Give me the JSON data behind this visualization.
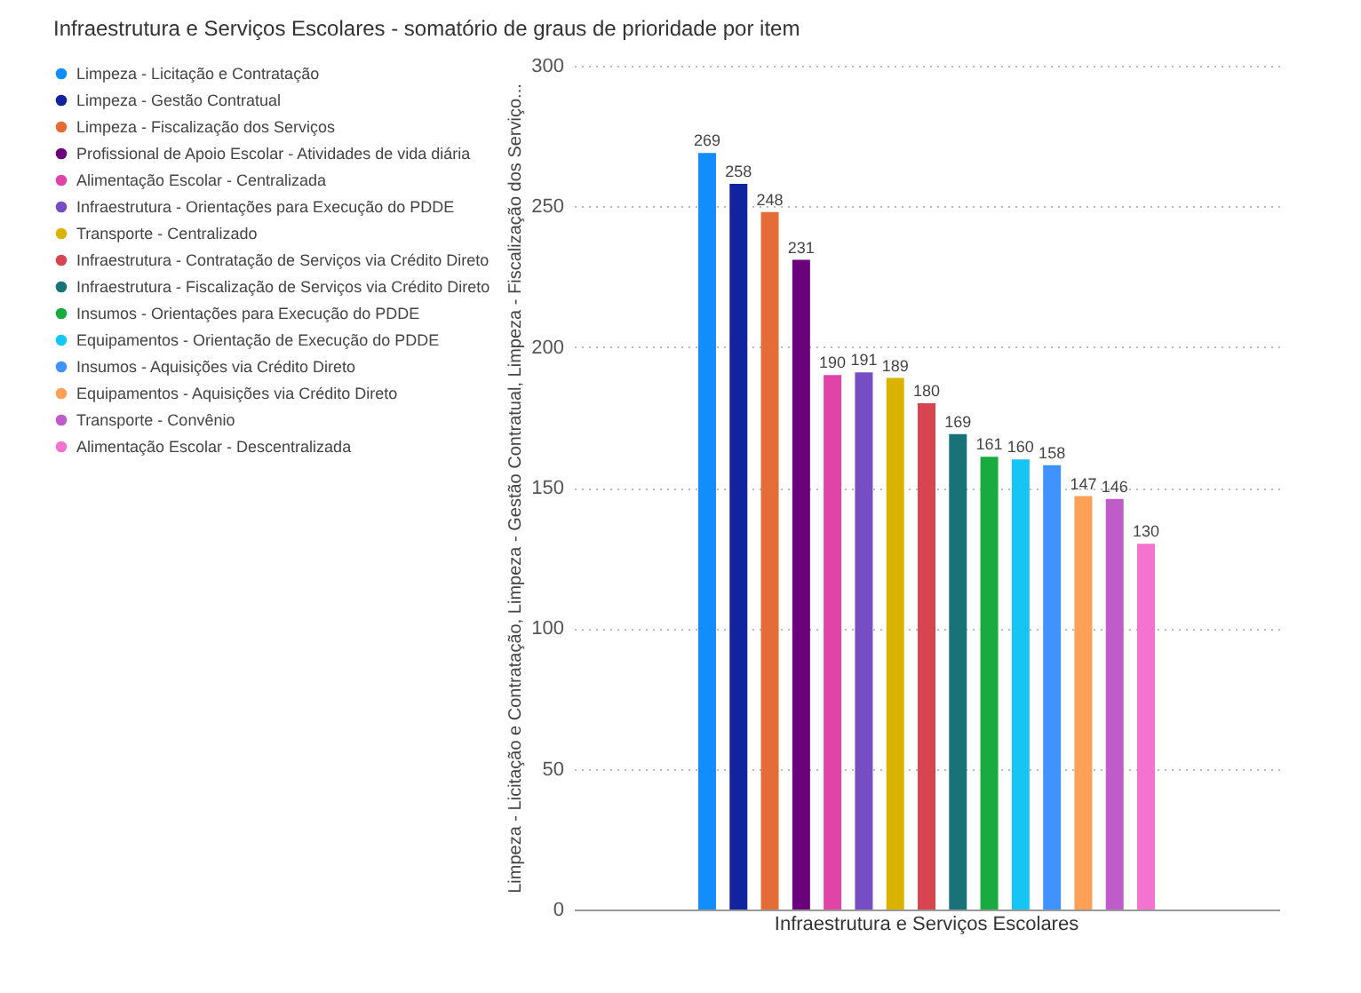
{
  "chart_data": {
    "type": "bar",
    "title": "Infraestrutura e Serviços Escolares - somatório de graus de prioridade por item",
    "ylabel": "Limpeza - Licitação e Contratação, Limpeza - Gestão Contratual, Limpeza - Fiscalização dos Serviço...",
    "categories": [
      "Infraestrutura e Serviços Escolares"
    ],
    "series": [
      {
        "name": "Limpeza - Licitação e Contratação",
        "color": "#118dff",
        "values": [
          269
        ]
      },
      {
        "name": "Limpeza - Gestão Contratual",
        "color": "#12239e",
        "values": [
          258
        ]
      },
      {
        "name": "Limpeza - Fiscalização dos Serviços",
        "color": "#e66c37",
        "values": [
          248
        ]
      },
      {
        "name": "Profissional de Apoio Escolar - Atividades de vida diária",
        "color": "#6b007b",
        "values": [
          231
        ]
      },
      {
        "name": "Alimentação Escolar - Centralizada",
        "color": "#e044a7",
        "values": [
          190
        ]
      },
      {
        "name": "Infraestrutura - Orientações para Execução do PDDE",
        "color": "#744ec2",
        "values": [
          191
        ]
      },
      {
        "name": "Transporte - Centralizado",
        "color": "#d9b300",
        "values": [
          189
        ]
      },
      {
        "name": "Infraestrutura - Contratação de Serviços via Crédito Direto",
        "color": "#d64550",
        "values": [
          180
        ]
      },
      {
        "name": "Infraestrutura - Fiscalização de Serviços via Crédito Direto",
        "color": "#197278",
        "values": [
          169
        ]
      },
      {
        "name": "Insumos  - Orientações para Execução do PDDE",
        "color": "#1aab40",
        "values": [
          161
        ]
      },
      {
        "name": "Equipamentos - Orientação de Execução do PDDE",
        "color": "#15c6f4",
        "values": [
          160
        ]
      },
      {
        "name": "Insumos - Aquisições via Crédito Direto",
        "color": "#4092ff",
        "values": [
          158
        ]
      },
      {
        "name": "Equipamentos - Aquisições via Crédito Direto",
        "color": "#ffa058",
        "values": [
          147
        ]
      },
      {
        "name": "Transporte - Convênio",
        "color": "#be5dc9",
        "values": [
          146
        ]
      },
      {
        "name": "Alimentação Escolar - Descentralizada",
        "color": "#f472d0",
        "values": [
          130
        ]
      }
    ],
    "ylim": [
      0,
      300
    ],
    "yticks": [
      0,
      50,
      100,
      150,
      200,
      250,
      300
    ],
    "grid": "y",
    "legend": "top left",
    "data_labels": true
  }
}
